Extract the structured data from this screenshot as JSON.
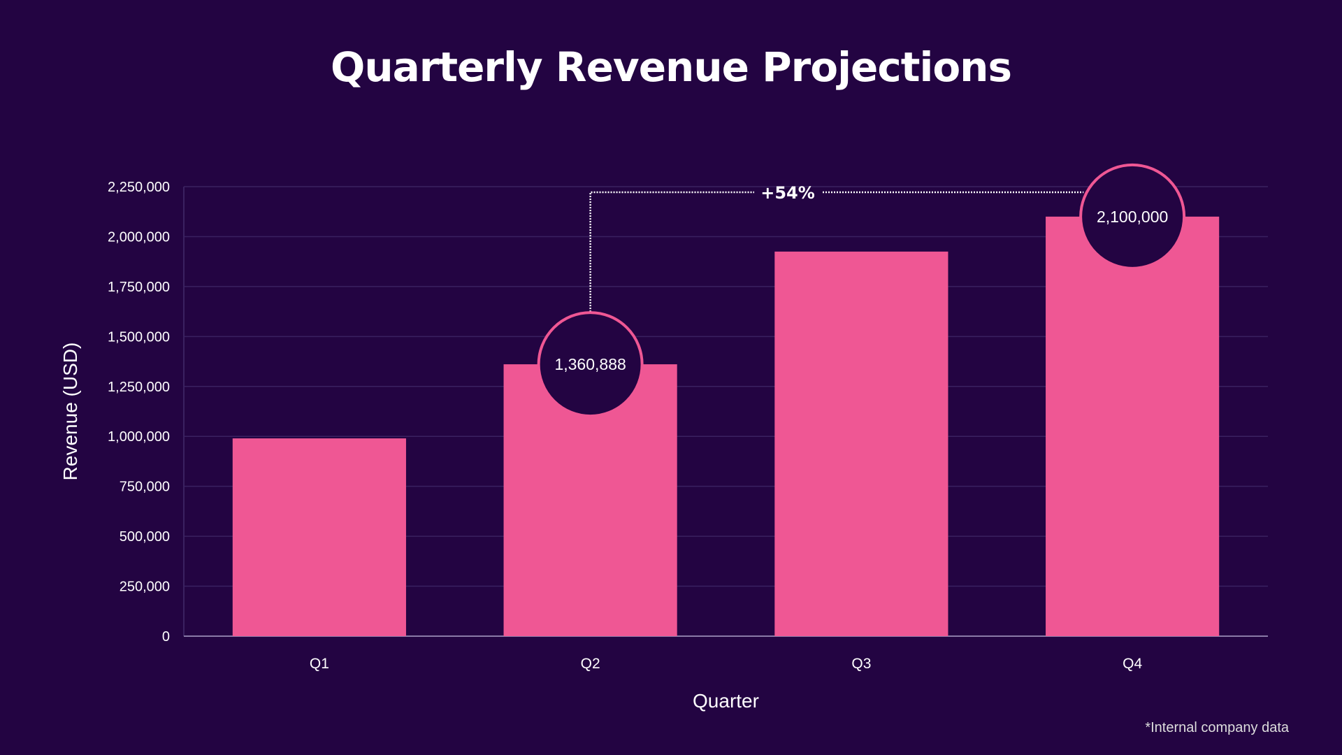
{
  "chart_data": {
    "type": "bar",
    "title": "Quarterly Revenue Projections",
    "xlabel": "Quarter",
    "ylabel": "Revenue (USD)",
    "categories": [
      "Q1",
      "Q2",
      "Q3",
      "Q4"
    ],
    "values": [
      990000,
      1360888,
      1925000,
      2100000
    ],
    "ylim": [
      0,
      2250000
    ],
    "yticks": [
      0,
      250000,
      500000,
      750000,
      1000000,
      1250000,
      1500000,
      1750000,
      2000000,
      2250000
    ],
    "ytick_labels": [
      "0",
      "250,000",
      "500,000",
      "750,000",
      "1,000,000",
      "1,250,000",
      "1,500,000",
      "1,750,000",
      "2,000,000",
      "2,250,000"
    ],
    "grid": true,
    "data_labels": [
      {
        "category": "Q2",
        "text": "1,360,888"
      },
      {
        "category": "Q4",
        "text": "2,100,000"
      }
    ],
    "annotation": {
      "from": "Q2",
      "to": "Q4",
      "text": "+54%"
    },
    "colors": {
      "background": "#230442",
      "bar": "#ef5794",
      "grid": "#3a2160",
      "axis": "#8a7aa8",
      "bubble_stroke": "#ef5794"
    }
  },
  "footnote": "*Internal company data"
}
